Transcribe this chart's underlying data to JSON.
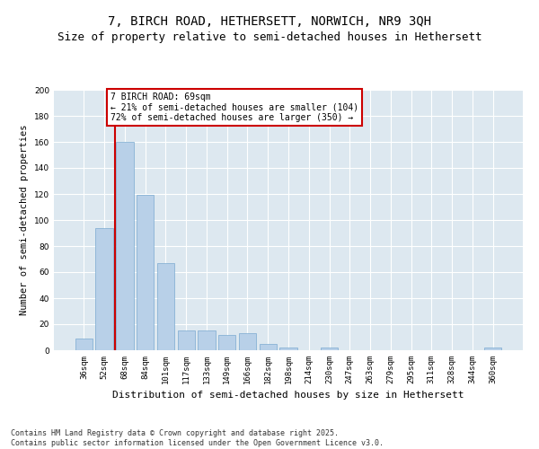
{
  "title1": "7, BIRCH ROAD, HETHERSETT, NORWICH, NR9 3QH",
  "title2": "Size of property relative to semi-detached houses in Hethersett",
  "xlabel": "Distribution of semi-detached houses by size in Hethersett",
  "ylabel": "Number of semi-detached properties",
  "categories": [
    "36sqm",
    "52sqm",
    "68sqm",
    "84sqm",
    "101sqm",
    "117sqm",
    "133sqm",
    "149sqm",
    "166sqm",
    "182sqm",
    "198sqm",
    "214sqm",
    "230sqm",
    "247sqm",
    "263sqm",
    "279sqm",
    "295sqm",
    "311sqm",
    "328sqm",
    "344sqm",
    "360sqm"
  ],
  "values": [
    9,
    94,
    160,
    119,
    67,
    15,
    15,
    12,
    13,
    5,
    2,
    0,
    2,
    0,
    0,
    0,
    0,
    0,
    0,
    0,
    2
  ],
  "bar_color": "#b8d0e8",
  "bar_edge_color": "#7aaad0",
  "vline_x": 1.5,
  "vline_color": "#cc0000",
  "annotation_text": "7 BIRCH ROAD: 69sqm\n← 21% of semi-detached houses are smaller (104)\n72% of semi-detached houses are larger (350) →",
  "annotation_box_color": "#ffffff",
  "annotation_box_edge": "#cc0000",
  "ylim": [
    0,
    200
  ],
  "yticks": [
    0,
    20,
    40,
    60,
    80,
    100,
    120,
    140,
    160,
    180,
    200
  ],
  "background_color": "#dde8f0",
  "grid_color": "#ffffff",
  "footer": "Contains HM Land Registry data © Crown copyright and database right 2025.\nContains public sector information licensed under the Open Government Licence v3.0.",
  "title1_fontsize": 10,
  "title2_fontsize": 9,
  "xlabel_fontsize": 8,
  "ylabel_fontsize": 7.5,
  "tick_fontsize": 6.5,
  "annotation_fontsize": 7,
  "footer_fontsize": 6
}
